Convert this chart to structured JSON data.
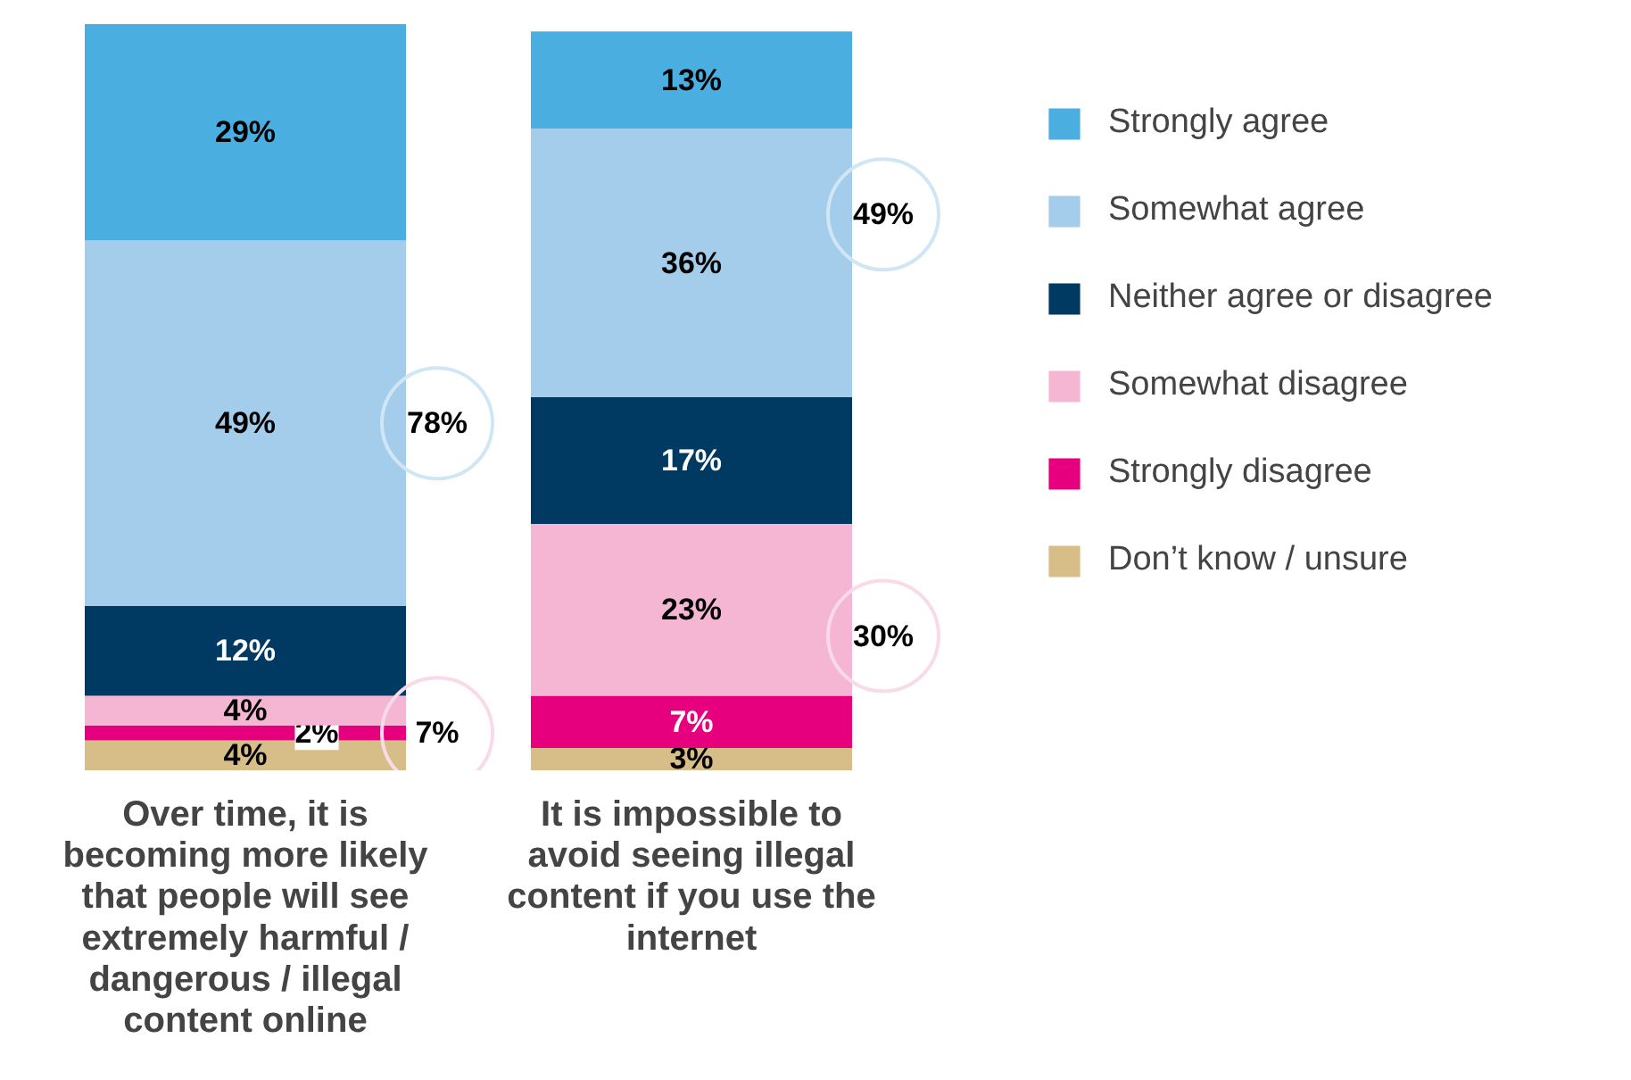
{
  "chart_data": {
    "type": "bar",
    "stacked": true,
    "tick_labels": "x",
    "grid": false,
    "legend": "right",
    "categories": [
      "Over time, it is becoming more likely that people will see extremely harmful / dangerous / illegal content online",
      "It is impossible to avoid seeing illegal content if you use the internet"
    ],
    "series": [
      {
        "name": "Don’t know / unsure",
        "color": "#d7bd88",
        "values": [
          4,
          3
        ],
        "value_labels": [
          "4%",
          "3%"
        ]
      },
      {
        "name": "Strongly disagree",
        "color": "#e6007e",
        "values": [
          2,
          7
        ],
        "value_labels": [
          "2%",
          "7%"
        ]
      },
      {
        "name": "Somewhat disagree",
        "color": "#f4b6d3",
        "values": [
          4,
          23
        ],
        "value_labels": [
          "4%",
          "23%"
        ]
      },
      {
        "name": "Neither agree or disagree",
        "color": "#003a63",
        "values": [
          12,
          17
        ],
        "value_labels": [
          "12%",
          "17%"
        ]
      },
      {
        "name": "Somewhat agree",
        "color": "#a3cdeb",
        "values": [
          49,
          36
        ],
        "value_labels": [
          "49%",
          "36%"
        ]
      },
      {
        "name": "Strongly agree",
        "color": "#4aafe0",
        "values": [
          29,
          13
        ],
        "value_labels": [
          "29%",
          "13%"
        ]
      }
    ],
    "annotations": [
      "78%",
      "7%",
      "49%",
      "30%"
    ]
  }
}
